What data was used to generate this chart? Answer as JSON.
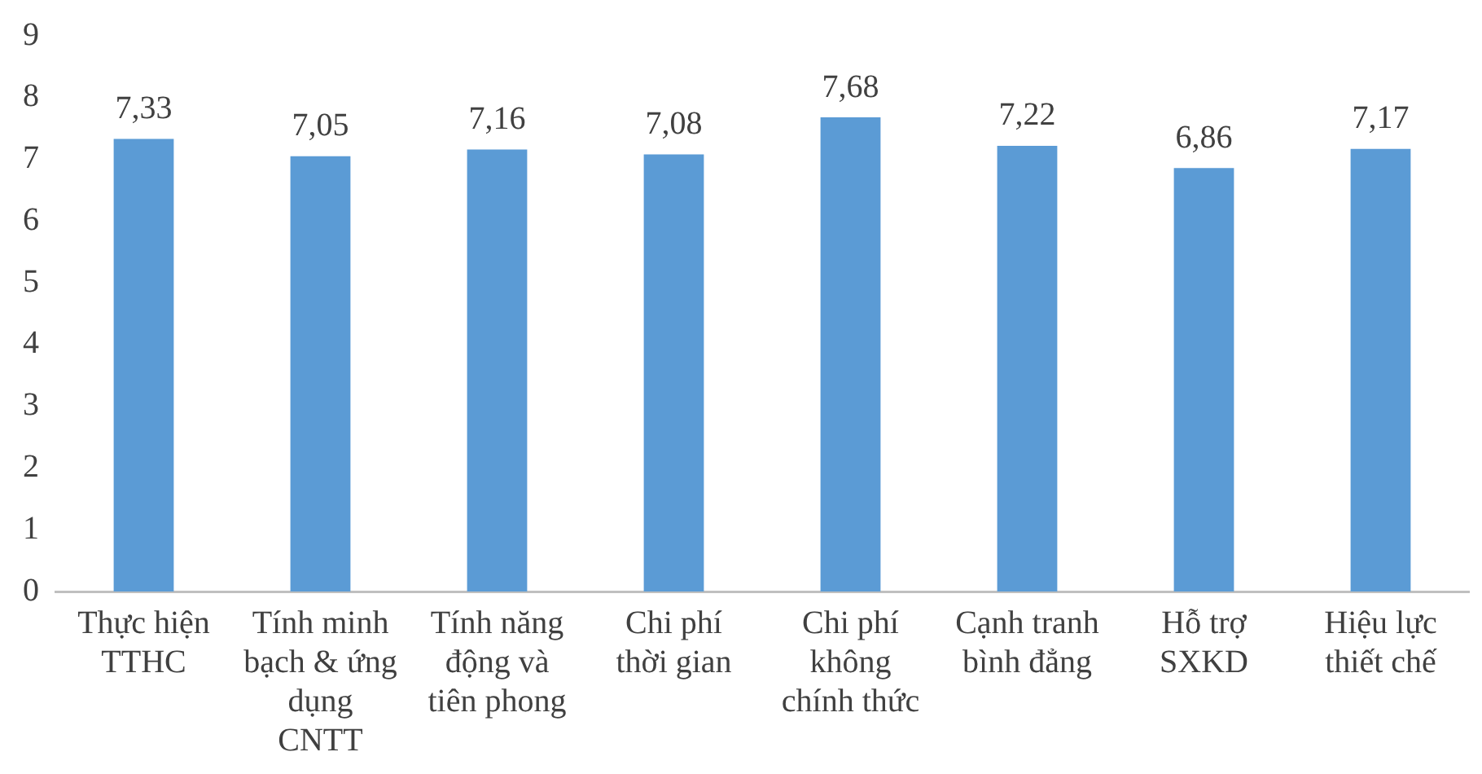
{
  "chart_data": {
    "type": "bar",
    "categories": [
      "Thực hiện TTHC",
      "Tính minh bạch & ứng dụng CNTT",
      "Tính năng động và tiên phong",
      "Chi phí thời gian",
      "Chi phí không chính thức",
      "Cạnh tranh bình đẳng",
      "Hỗ trợ SXKD",
      "Hiệu lực thiết chế"
    ],
    "values": [
      7.33,
      7.05,
      7.16,
      7.08,
      7.68,
      7.22,
      6.86,
      7.17
    ],
    "value_labels": [
      "7,33",
      "7,05",
      "7,16",
      "7,08",
      "7,68",
      "7,22",
      "6,86",
      "7,17"
    ],
    "color": "#5b9bd5",
    "ylim": [
      0,
      9
    ],
    "yticks": [
      0,
      1,
      2,
      3,
      4,
      5,
      6,
      7,
      8,
      9
    ],
    "grid": false,
    "legend": false
  }
}
